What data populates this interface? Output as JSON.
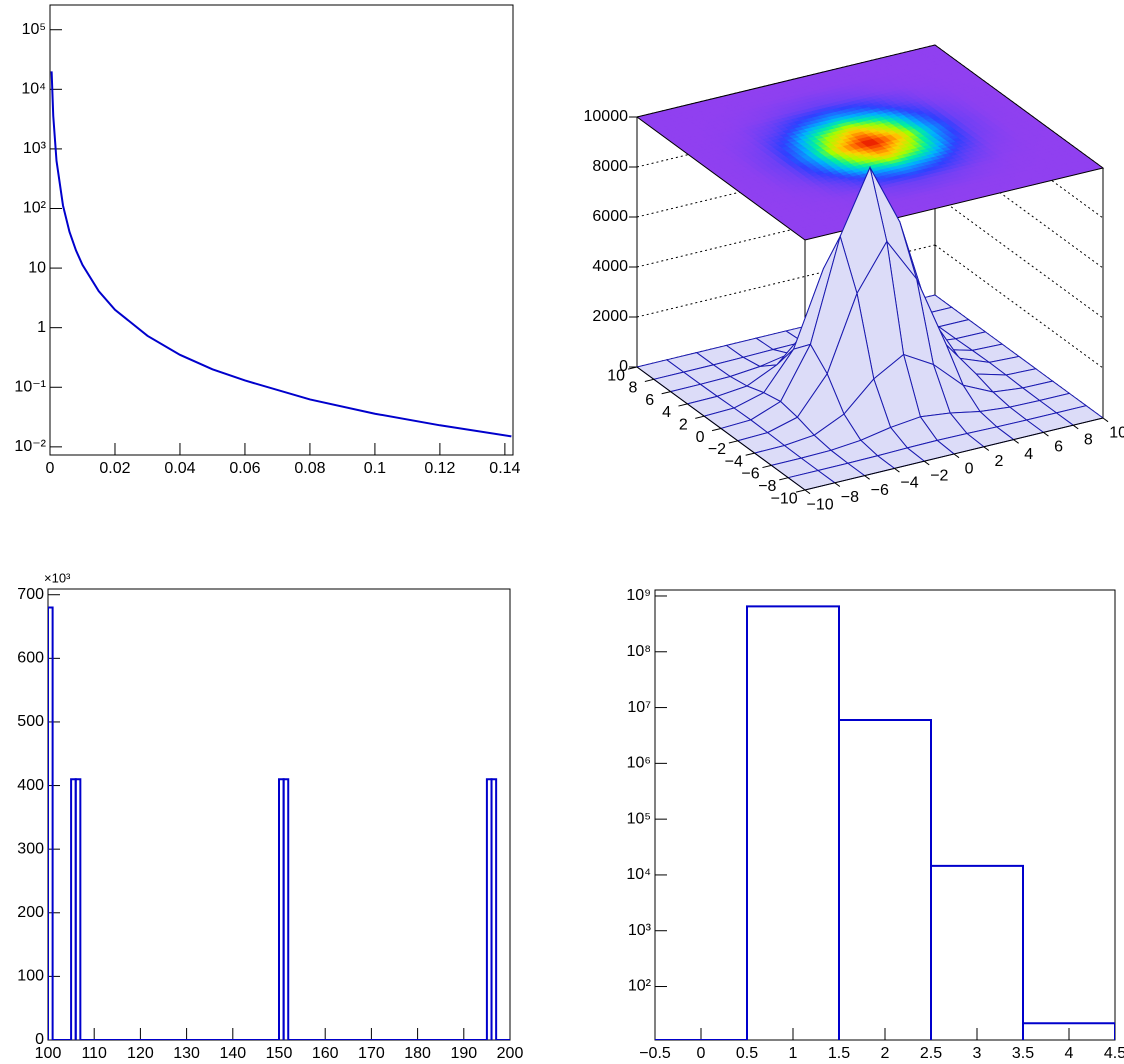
{
  "chart_data": [
    {
      "type": "line",
      "log_y": true,
      "color": "#0000cc",
      "x": [
        0.0005,
        0.001,
        0.002,
        0.004,
        0.006,
        0.008,
        0.01,
        0.015,
        0.02,
        0.03,
        0.04,
        0.05,
        0.06,
        0.08,
        0.1,
        0.12,
        0.142
      ],
      "values": [
        20000,
        3578,
        632,
        112,
        40.6,
        19.8,
        11.3,
        4.1,
        2,
        0.73,
        0.35,
        0.2,
        0.13,
        0.0625,
        0.036,
        0.023,
        0.015
      ],
      "xlim": [
        0,
        0.1425
      ],
      "ylim": [
        0.0073,
        260000
      ],
      "xticks": [
        0,
        0.02,
        0.04,
        0.06,
        0.08,
        0.1,
        0.12,
        0.14
      ],
      "yticks": [
        {
          "value": 0.01,
          "label": "10⁻²"
        },
        {
          "value": 0.1,
          "label": "10⁻¹"
        },
        1,
        10,
        {
          "value": 100,
          "label": "10²"
        },
        {
          "value": 1000,
          "label": "10³"
        },
        {
          "value": 10000,
          "label": "10⁴"
        },
        {
          "value": 100000,
          "label": "10⁵"
        }
      ]
    },
    {
      "type": "surface",
      "line_color": "#1a1ab0",
      "fill_color": "#dcdcf8",
      "palette": [
        "#9040f0",
        "#3040ff",
        "#00b0ff",
        "#00f0a0",
        "#a0ff00",
        "#ffd000",
        "#ff6000",
        "#e00000"
      ],
      "x": [
        -10,
        -8,
        -6,
        -4,
        -2,
        0,
        2,
        4,
        6,
        8,
        10
      ],
      "y": [
        -10,
        -8,
        -6,
        -4,
        -2,
        0,
        2,
        4,
        6,
        8,
        10
      ],
      "z": [
        [
          0,
          0,
          0,
          1,
          2,
          3,
          2,
          1,
          0,
          0,
          0
        ],
        [
          0,
          0,
          3,
          15,
          39,
          54,
          39,
          15,
          3,
          0,
          0
        ],
        [
          0,
          3,
          28,
          140,
          366,
          504,
          366,
          140,
          28,
          3,
          0
        ],
        [
          1,
          15,
          140,
          696,
          1816,
          2502,
          1816,
          696,
          140,
          15,
          1
        ],
        [
          2,
          39,
          366,
          1816,
          4744,
          6534,
          4744,
          1816,
          366,
          39,
          2
        ],
        [
          3,
          54,
          504,
          2502,
          6534,
          9000,
          6534,
          2502,
          504,
          54,
          3
        ],
        [
          2,
          39,
          366,
          1816,
          4744,
          6534,
          4744,
          1816,
          366,
          39,
          2
        ],
        [
          1,
          15,
          140,
          696,
          1816,
          2502,
          1816,
          696,
          140,
          15,
          1
        ],
        [
          0,
          3,
          28,
          140,
          366,
          504,
          366,
          140,
          28,
          3,
          0
        ],
        [
          0,
          0,
          3,
          15,
          39,
          54,
          39,
          15,
          3,
          0,
          0
        ],
        [
          0,
          0,
          0,
          1,
          2,
          3,
          2,
          1,
          0,
          0,
          0
        ]
      ],
      "xlim": [
        -10,
        10
      ],
      "ylim": [
        -10,
        10
      ],
      "zlim": [
        0,
        10000
      ],
      "xticks": [
        {
          "value": -10,
          "label": "−10"
        },
        {
          "value": -8,
          "label": "−8"
        },
        {
          "value": -6,
          "label": "−6"
        },
        {
          "value": -4,
          "label": "−4"
        },
        {
          "value": -2,
          "label": "−2"
        },
        0,
        2,
        4,
        6,
        8,
        10
      ],
      "yticks": [
        {
          "value": -10,
          "label": "−10"
        },
        {
          "value": -8,
          "label": "−8"
        },
        {
          "value": -6,
          "label": "−6"
        },
        {
          "value": -4,
          "label": "−4"
        },
        {
          "value": -2,
          "label": "−2"
        },
        0,
        2,
        4,
        6,
        8,
        10
      ],
      "zticks": [
        0,
        2000,
        4000,
        6000,
        8000,
        10000
      ]
    },
    {
      "type": "histogram",
      "color": "#0000cc",
      "y_multiplier": "×10³",
      "bins": [
        100,
        101,
        105,
        106,
        107,
        150,
        151,
        152,
        195,
        196,
        197,
        200
      ],
      "counts": [
        680,
        0,
        410,
        410,
        0,
        410,
        410,
        0,
        410,
        410,
        0
      ],
      "xlim": [
        100,
        200
      ],
      "ylim": [
        0,
        709
      ],
      "xticks": [
        100,
        110,
        120,
        130,
        140,
        150,
        160,
        170,
        180,
        190,
        200
      ],
      "yticks": [
        0,
        100,
        200,
        300,
        400,
        500,
        600,
        700
      ]
    },
    {
      "type": "histogram",
      "color": "#0000cc",
      "log_y": true,
      "bins": [
        -0.5,
        0.5,
        1.5,
        2.5,
        3.5,
        4.5
      ],
      "counts": [
        0,
        650000000,
        6000000,
        14500,
        22
      ],
      "xlim": [
        -0.5,
        4.5
      ],
      "ylim": [
        11,
        1280000000
      ],
      "xticks": [
        {
          "value": -0.5,
          "label": "−0.5"
        },
        0,
        0.5,
        1,
        1.5,
        2,
        2.5,
        3,
        3.5,
        4,
        4.5
      ],
      "yticks": [
        {
          "value": 100,
          "label": "10²"
        },
        {
          "value": 1000,
          "label": "10³"
        },
        {
          "value": 10000,
          "label": "10⁴"
        },
        {
          "value": 100000,
          "label": "10⁵"
        },
        {
          "value": 1000000,
          "label": "10⁶"
        },
        {
          "value": 10000000,
          "label": "10⁷"
        },
        {
          "value": 100000000,
          "label": "10⁸"
        },
        {
          "value": 1000000000,
          "label": "10⁹"
        }
      ]
    }
  ]
}
